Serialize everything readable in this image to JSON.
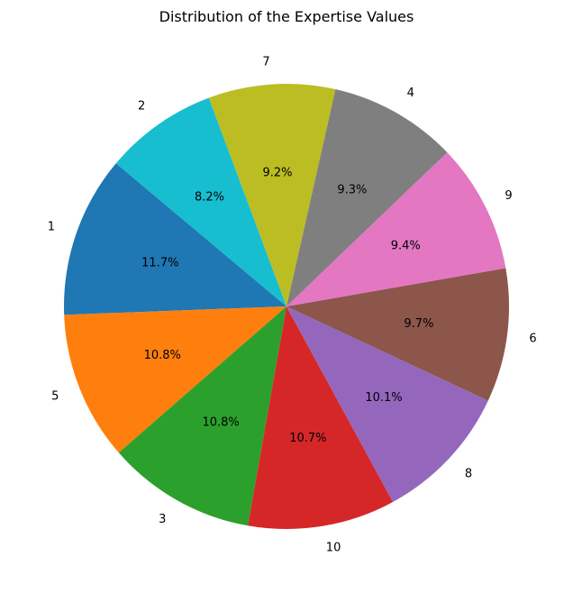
{
  "chart_data": {
    "type": "pie",
    "title": "Distribution of the Expertise Values",
    "categories": [
      "1",
      "5",
      "3",
      "10",
      "8",
      "6",
      "9",
      "4",
      "7",
      "2"
    ],
    "values": [
      11.7,
      10.8,
      10.8,
      10.7,
      10.1,
      9.7,
      9.4,
      9.3,
      9.2,
      8.2
    ],
    "percent_labels": [
      "11.7%",
      "10.8%",
      "10.8%",
      "10.7%",
      "10.1%",
      "9.7%",
      "9.4%",
      "9.3%",
      "9.2%",
      "8.2%"
    ],
    "colors": [
      "#1f77b4",
      "#ff7f0e",
      "#2ca02c",
      "#d62728",
      "#9467bd",
      "#8c564b",
      "#e377c2",
      "#7f7f7f",
      "#bcbd22",
      "#17becf"
    ],
    "start_angle_deg": 140,
    "direction": "counterclockwise"
  }
}
